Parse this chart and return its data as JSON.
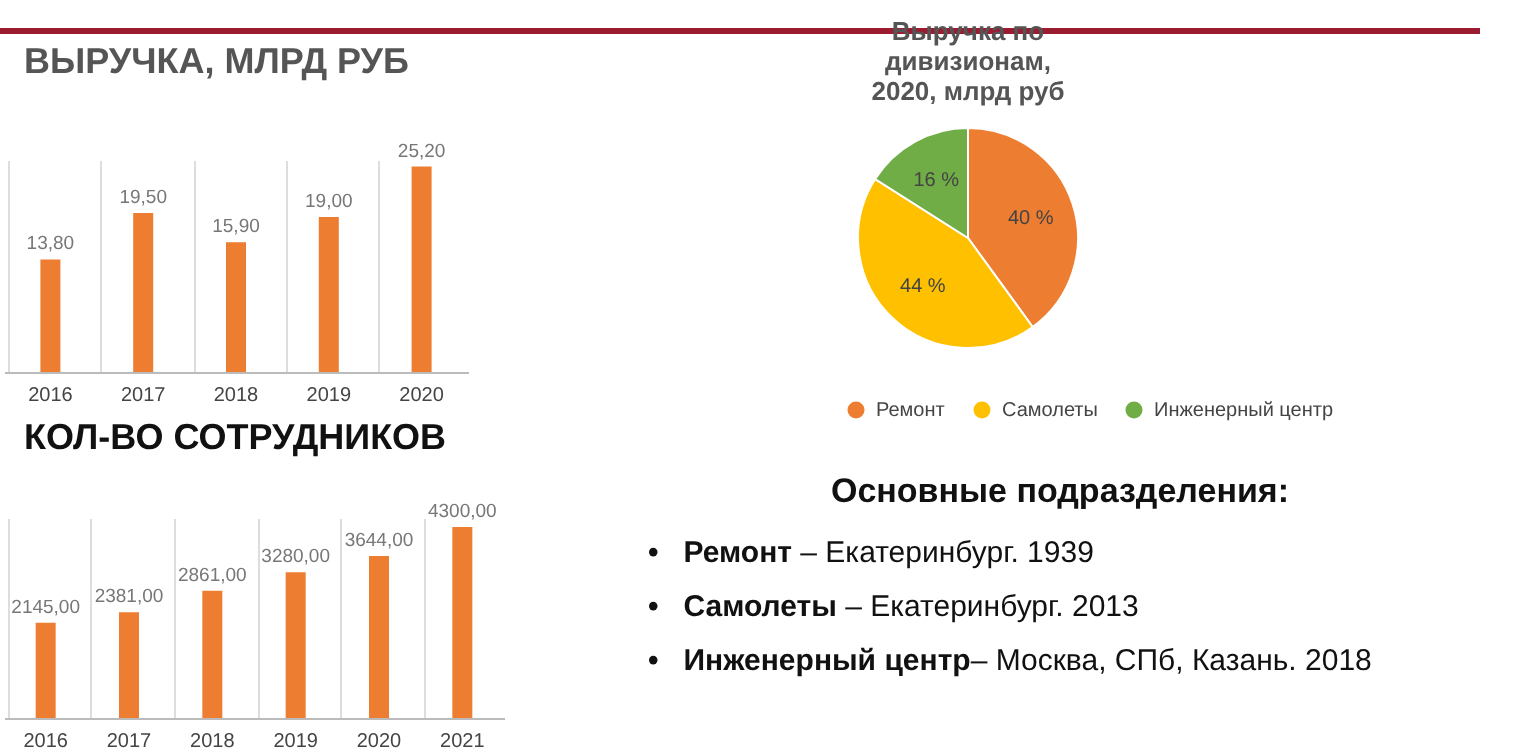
{
  "chart_data": [
    {
      "type": "bar",
      "title": "ВЫРУЧКА, МЛРД РУБ",
      "categories": [
        "2016",
        "2017",
        "2018",
        "2019",
        "2020"
      ],
      "values": [
        13.8,
        19.5,
        15.9,
        19.0,
        25.2
      ],
      "value_labels": [
        "13,80",
        "19,50",
        "15,90",
        "19,00",
        "25,20"
      ],
      "color": "#ed7d31",
      "grid": "x"
    },
    {
      "type": "pie",
      "title": "Выручка по дивизионам, 2020, млрд руб",
      "categories": [
        "Ремонт",
        "Самолеты",
        "Инженерный центр"
      ],
      "values": [
        40,
        44,
        16
      ],
      "value_labels": [
        "40 %",
        "44 %",
        "16 %"
      ],
      "colors": [
        "#ed7d31",
        "#ffc000",
        "#70ad47"
      ],
      "legend": "bottom"
    },
    {
      "type": "bar",
      "title": "КОЛ-ВО СОТРУДНИКОВ",
      "categories": [
        "2016",
        "2017",
        "2018",
        "2019",
        "2020",
        "2021"
      ],
      "values": [
        2145,
        2381,
        2861,
        3280,
        3644,
        4300
      ],
      "value_labels": [
        "2145,00",
        "2381,00",
        "2861,00",
        "3280,00",
        "3644,00",
        "4300,00"
      ],
      "color": "#ed7d31",
      "grid": "x"
    },
    {
      "type": "other",
      "title": "Основные подразделения:",
      "annotations": [
        "•   Ремонт – Екатеринбург. 1939",
        "•   Самолеты – Екатеринбург. 2013",
        "•   Инженерный центр– Москва, СПб, Казань. 2018"
      ]
    }
  ]
}
